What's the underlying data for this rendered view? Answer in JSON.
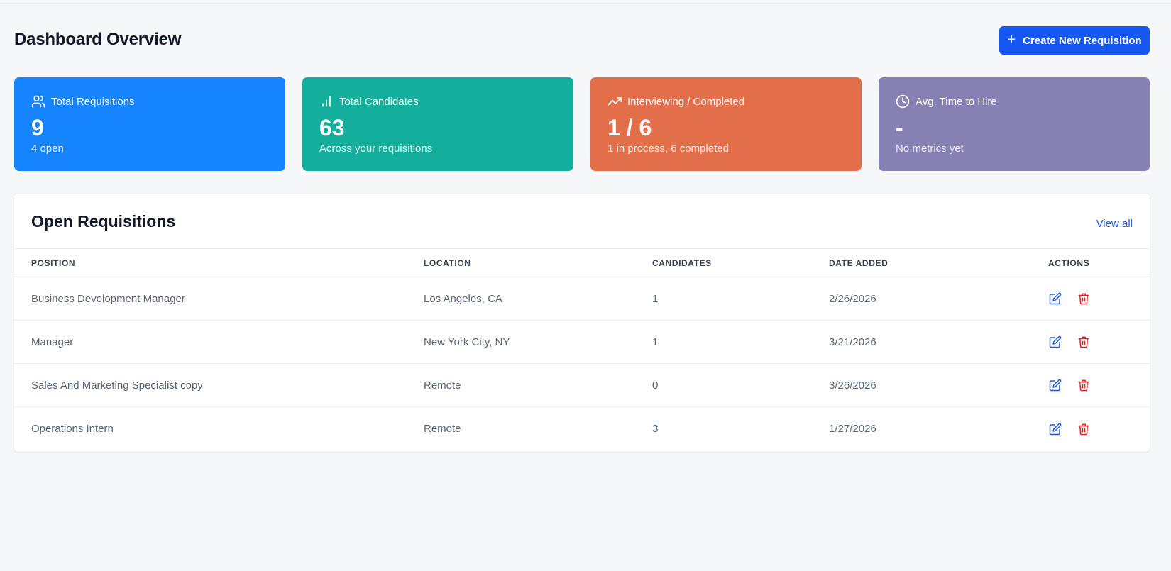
{
  "header": {
    "title": "Dashboard Overview",
    "create_label": "Create New Requisition"
  },
  "stats": [
    {
      "label": "Total Requisitions",
      "value": "9",
      "sub": "4 open",
      "icon": "users-icon",
      "color": "#1784ff"
    },
    {
      "label": "Total Candidates",
      "value": "63",
      "sub": "Across your requisitions",
      "icon": "bar-chart-icon",
      "color": "#14ae9c"
    },
    {
      "label": "Interviewing / Completed",
      "value": "1 / 6",
      "sub": "1 in process, 6 completed",
      "icon": "trending-up-icon",
      "color": "#e36e4a"
    },
    {
      "label": "Avg. Time to Hire",
      "value": "-",
      "sub": "No metrics yet",
      "icon": "clock-icon",
      "color": "#8581b2"
    }
  ],
  "requisitions": {
    "title": "Open Requisitions",
    "view_all": "View all",
    "columns": [
      "POSITION",
      "LOCATION",
      "CANDIDATES",
      "DATE ADDED",
      "ACTIONS"
    ],
    "rows": [
      {
        "position": "Business Development Manager",
        "location": "Los Angeles, CA",
        "candidates": "1",
        "date": "2/26/2026"
      },
      {
        "position": "Manager",
        "location": "New York City, NY",
        "candidates": "1",
        "date": "3/21/2026"
      },
      {
        "position": "Sales And Marketing Specialist copy",
        "location": "Remote",
        "candidates": "0",
        "date": "3/26/2026"
      },
      {
        "position": "Operations Intern",
        "location": "Remote",
        "candidates": "3",
        "date": "1/27/2026"
      }
    ]
  },
  "colors": {
    "primary": "#1557f0",
    "edit": "#1d5bdc",
    "delete": "#dc2626"
  }
}
